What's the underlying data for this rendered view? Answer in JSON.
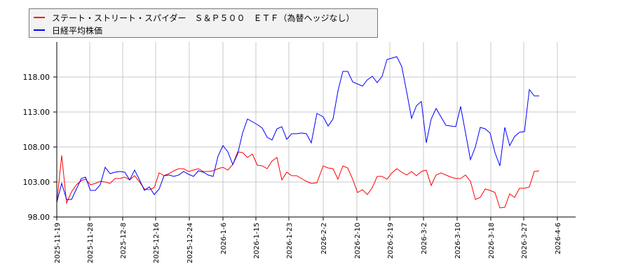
{
  "chart_data": {
    "type": "line",
    "title": "",
    "xlabel": "",
    "ylabel": "",
    "ylim": [
      98,
      120
    ],
    "yticks": [
      "98.00",
      "103.00",
      "108.00",
      "113.00",
      "118.00"
    ],
    "xticks": [
      "2025-11-19",
      "2025-11-28",
      "2025-12-8",
      "2025-12-16",
      "2025-12-24",
      "2026-1-6",
      "2026-1-15",
      "2026-1-23",
      "2026-2-2",
      "2026-2-10",
      "2026-2-19",
      "2026-3-2",
      "2026-3-10",
      "2026-3-18",
      "2026-3-27",
      "2026-4-6"
    ],
    "grid": true,
    "legend_position": "top-left",
    "series": [
      {
        "name": "ステート・ストリート・スパイダー　Ｓ＆Ｐ５００　ＥＴＦ（為替ヘッジなし）",
        "color": "#ff0000",
        "points": [
          [
            81,
            100.0
          ],
          [
            88,
            106.8
          ],
          [
            95,
            100.0
          ],
          [
            102,
            101.6
          ],
          [
            109,
            102.6
          ],
          [
            116,
            103.2
          ],
          [
            122,
            103.4
          ],
          [
            129,
            102.6
          ],
          [
            136,
            102.8
          ],
          [
            143,
            103.1
          ],
          [
            150,
            103.0
          ],
          [
            157,
            102.8
          ],
          [
            164,
            103.5
          ],
          [
            171,
            103.5
          ],
          [
            178,
            103.7
          ],
          [
            185,
            103.3
          ],
          [
            192,
            103.9
          ],
          [
            199,
            103.0
          ],
          [
            206,
            102.0
          ],
          [
            213,
            101.9
          ],
          [
            220,
            102.2
          ],
          [
            227,
            104.3
          ],
          [
            234,
            103.9
          ],
          [
            241,
            104.2
          ],
          [
            248,
            104.6
          ],
          [
            255,
            104.9
          ],
          [
            262,
            104.9
          ],
          [
            269,
            104.5
          ],
          [
            276,
            104.7
          ],
          [
            283,
            104.9
          ],
          [
            290,
            104.5
          ],
          [
            297,
            104.5
          ],
          [
            304,
            104.6
          ],
          [
            311,
            104.9
          ],
          [
            318,
            105.1
          ],
          [
            325,
            104.7
          ],
          [
            332,
            105.5
          ],
          [
            339,
            107.3
          ],
          [
            346,
            107.2
          ],
          [
            353,
            106.5
          ],
          [
            360,
            107.0
          ],
          [
            367,
            105.4
          ],
          [
            374,
            105.3
          ],
          [
            381,
            104.9
          ],
          [
            388,
            106.0
          ],
          [
            395,
            106.5
          ],
          [
            402,
            103.3
          ],
          [
            409,
            104.4
          ],
          [
            416,
            103.9
          ],
          [
            423,
            103.9
          ],
          [
            430,
            103.5
          ],
          [
            437,
            103.1
          ],
          [
            444,
            102.8
          ],
          [
            452,
            102.9
          ],
          [
            461,
            105.3
          ],
          [
            468,
            105.0
          ],
          [
            475,
            104.9
          ],
          [
            482,
            103.4
          ],
          [
            489,
            105.3
          ],
          [
            496,
            105.0
          ],
          [
            503,
            103.4
          ],
          [
            510,
            101.5
          ],
          [
            517,
            101.9
          ],
          [
            524,
            101.2
          ],
          [
            531,
            102.2
          ],
          [
            538,
            103.8
          ],
          [
            545,
            103.8
          ],
          [
            552,
            103.4
          ],
          [
            559,
            104.3
          ],
          [
            566,
            104.9
          ],
          [
            573,
            104.4
          ],
          [
            580,
            104.0
          ],
          [
            587,
            104.5
          ],
          [
            594,
            103.9
          ],
          [
            601,
            104.5
          ],
          [
            608,
            104.7
          ],
          [
            615,
            102.5
          ],
          [
            622,
            104.0
          ],
          [
            629,
            104.3
          ],
          [
            636,
            104.0
          ],
          [
            643,
            103.7
          ],
          [
            650,
            103.5
          ],
          [
            657,
            103.5
          ],
          [
            664,
            104.0
          ],
          [
            671,
            103.1
          ],
          [
            678,
            100.5
          ],
          [
            685,
            100.8
          ],
          [
            692,
            102.0
          ],
          [
            699,
            101.8
          ],
          [
            706,
            101.5
          ],
          [
            713,
            99.3
          ],
          [
            720,
            99.4
          ],
          [
            727,
            101.3
          ],
          [
            734,
            100.8
          ],
          [
            741,
            102.1
          ],
          [
            748,
            102.1
          ],
          [
            755,
            102.3
          ],
          [
            762,
            104.5
          ],
          [
            769,
            104.6
          ]
        ]
      },
      {
        "name": "日経平均株価",
        "color": "#0000ff",
        "points": [
          [
            81,
            100.1
          ],
          [
            88,
            102.8
          ],
          [
            95,
            100.5
          ],
          [
            102,
            100.5
          ],
          [
            109,
            102.0
          ],
          [
            116,
            103.5
          ],
          [
            122,
            103.7
          ],
          [
            129,
            101.8
          ],
          [
            136,
            101.8
          ],
          [
            143,
            102.6
          ],
          [
            150,
            105.1
          ],
          [
            157,
            104.2
          ],
          [
            164,
            104.4
          ],
          [
            171,
            104.5
          ],
          [
            178,
            104.4
          ],
          [
            185,
            103.3
          ],
          [
            192,
            104.7
          ],
          [
            199,
            103.3
          ],
          [
            206,
            101.8
          ],
          [
            213,
            102.3
          ],
          [
            220,
            101.2
          ],
          [
            227,
            102.0
          ],
          [
            234,
            103.9
          ],
          [
            241,
            104.0
          ],
          [
            248,
            103.8
          ],
          [
            255,
            104.0
          ],
          [
            262,
            104.5
          ],
          [
            269,
            104.1
          ],
          [
            276,
            103.8
          ],
          [
            283,
            104.6
          ],
          [
            290,
            104.4
          ],
          [
            297,
            104.0
          ],
          [
            304,
            103.8
          ],
          [
            311,
            106.7
          ],
          [
            318,
            108.2
          ],
          [
            325,
            107.3
          ],
          [
            332,
            105.5
          ],
          [
            339,
            107.0
          ],
          [
            346,
            110.0
          ],
          [
            353,
            112.0
          ],
          [
            360,
            111.6
          ],
          [
            367,
            111.2
          ],
          [
            374,
            110.7
          ],
          [
            381,
            109.4
          ],
          [
            388,
            109.0
          ],
          [
            395,
            110.6
          ],
          [
            402,
            110.9
          ],
          [
            409,
            109.1
          ],
          [
            416,
            109.9
          ],
          [
            423,
            109.9
          ],
          [
            430,
            110.0
          ],
          [
            437,
            109.9
          ],
          [
            444,
            108.6
          ],
          [
            452,
            112.8
          ],
          [
            461,
            112.3
          ],
          [
            468,
            111.0
          ],
          [
            475,
            112.0
          ],
          [
            482,
            116.0
          ],
          [
            489,
            118.8
          ],
          [
            496,
            118.8
          ],
          [
            503,
            117.3
          ],
          [
            510,
            117.0
          ],
          [
            517,
            116.7
          ],
          [
            524,
            117.6
          ],
          [
            531,
            118.1
          ],
          [
            538,
            117.2
          ],
          [
            545,
            118.1
          ],
          [
            552,
            120.5
          ],
          [
            559,
            120.7
          ],
          [
            566,
            120.9
          ],
          [
            573,
            119.5
          ],
          [
            580,
            115.9
          ],
          [
            587,
            112.1
          ],
          [
            594,
            113.9
          ],
          [
            601,
            114.5
          ],
          [
            608,
            108.6
          ],
          [
            615,
            112.0
          ],
          [
            622,
            113.5
          ],
          [
            629,
            112.3
          ],
          [
            636,
            111.1
          ],
          [
            643,
            111.0
          ],
          [
            650,
            110.9
          ],
          [
            657,
            113.8
          ],
          [
            664,
            110.0
          ],
          [
            671,
            106.2
          ],
          [
            678,
            108.0
          ],
          [
            685,
            110.8
          ],
          [
            692,
            110.6
          ],
          [
            699,
            110.0
          ],
          [
            706,
            107.2
          ],
          [
            713,
            105.3
          ],
          [
            720,
            110.8
          ],
          [
            727,
            108.2
          ],
          [
            734,
            109.5
          ],
          [
            741,
            110.1
          ],
          [
            748,
            110.2
          ],
          [
            755,
            116.2
          ],
          [
            762,
            115.3
          ],
          [
            769,
            115.3
          ]
        ]
      }
    ]
  },
  "legend": {
    "items": [
      {
        "label": "ステート・ストリート・スパイダー　Ｓ＆Ｐ５００　ＥＴＦ（為替ヘッジなし）",
        "color": "#ff0000"
      },
      {
        "label": "日経平均株価",
        "color": "#0000ff"
      }
    ]
  }
}
